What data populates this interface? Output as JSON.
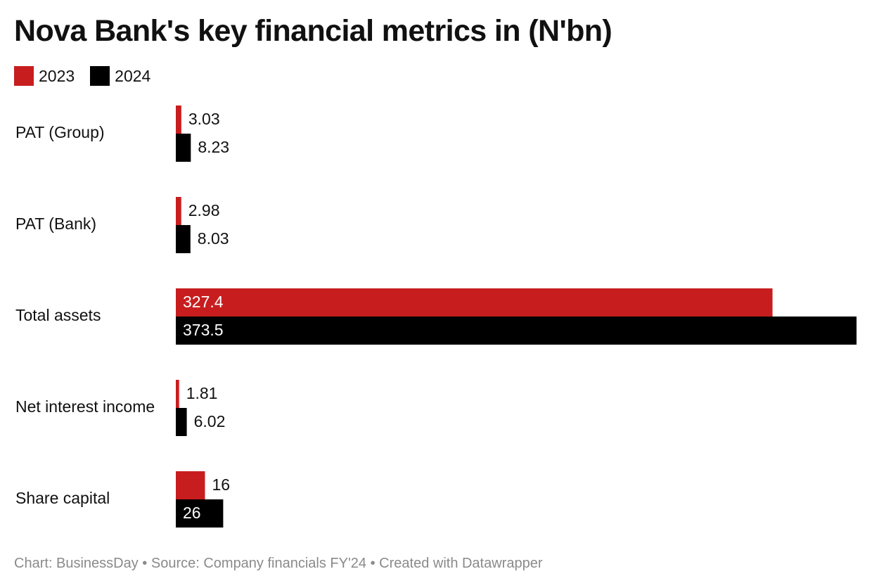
{
  "chart_data": {
    "type": "bar",
    "orientation": "horizontal",
    "title": "Nova Bank's key financial metrics in (N'bn)",
    "categories": [
      "PAT (Group)",
      "PAT (Bank)",
      "Total assets",
      "Net interest income",
      "Share capital"
    ],
    "series": [
      {
        "name": "2023",
        "color": "#c81d1e",
        "values": [
          3.03,
          2.98,
          327.4,
          1.81,
          16
        ],
        "labels": [
          "3.03",
          "2.98",
          "327.4",
          "1.81",
          "16"
        ]
      },
      {
        "name": "2024",
        "color": "#000000",
        "values": [
          8.23,
          8.03,
          373.5,
          6.02,
          26
        ],
        "labels": [
          "8.23",
          "8.03",
          "373.5",
          "6.02",
          "26"
        ]
      }
    ],
    "xlim": [
      0,
      373.5
    ],
    "grid": false,
    "legend_position": "top-left",
    "footer": "Chart: BusinessDay • Source: Company financials FY'24 • Created with Datawrapper"
  }
}
